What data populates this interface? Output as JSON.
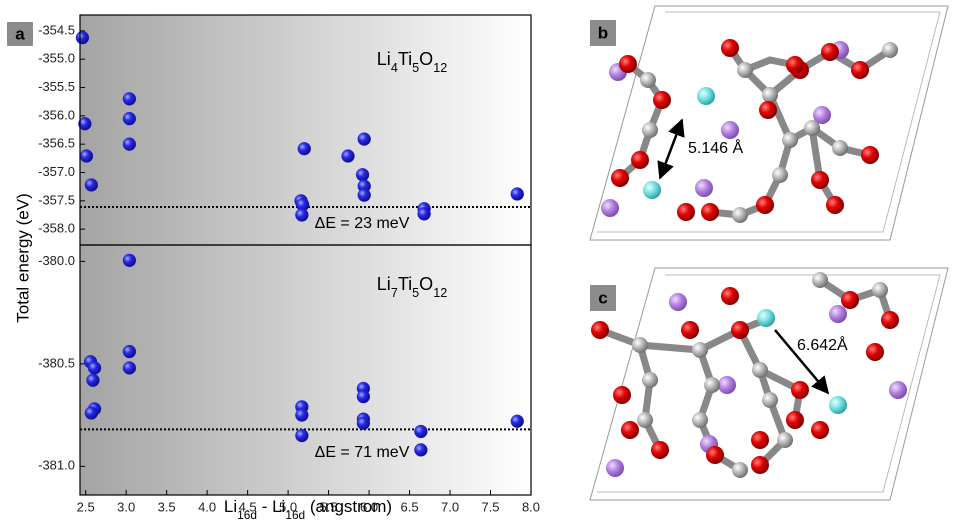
{
  "chart_data": [
    {
      "type": "scatter",
      "color": "#1a1adf",
      "formula": [
        "Li",
        "4",
        "Ti",
        "5",
        "O",
        "12"
      ],
      "delta_label": "ΔE = 23 meV",
      "reference_line": -357.61,
      "x": [
        2.46,
        2.49,
        3.04,
        3.04,
        3.04,
        2.51,
        2.57,
        5.2,
        5.16,
        5.18,
        5.17,
        5.74,
        5.94,
        5.92,
        5.94,
        5.94,
        6.68,
        6.68,
        7.83
      ],
      "values": [
        -354.62,
        -356.14,
        -355.7,
        -356.05,
        -356.5,
        -356.71,
        -357.22,
        -356.58,
        -357.5,
        -357.57,
        -357.75,
        -356.71,
        -356.41,
        -357.04,
        -357.24,
        -357.4,
        -357.64,
        -357.73,
        -357.38
      ],
      "xlim": [
        2.43,
        8.0
      ],
      "ylim": [
        -358.28,
        -354.22
      ],
      "yticks": [
        -354.5,
        {
          "value": -355,
          "label": "-355.0"
        },
        -355.5,
        {
          "value": -356,
          "label": "-356.0"
        },
        -356.5,
        {
          "value": -357,
          "label": "-357.0"
        },
        -357.5,
        {
          "value": -358,
          "label": "-358.0"
        }
      ]
    },
    {
      "type": "scatter",
      "color": "#1a1adf",
      "formula": [
        "Li",
        "7",
        "Ti",
        "5",
        "O",
        "12"
      ],
      "delta_label": "ΔE = 71 meV",
      "reference_line": -380.82,
      "x": [
        3.04,
        3.04,
        2.56,
        2.61,
        3.04,
        2.59,
        2.61,
        2.57,
        5.17,
        5.17,
        5.17,
        5.93,
        5.93,
        5.93,
        5.93,
        6.64,
        6.64,
        7.83
      ],
      "values": [
        -379.995,
        -380.44,
        -380.49,
        -380.52,
        -380.52,
        -380.58,
        -380.72,
        -380.74,
        -380.71,
        -380.75,
        -380.85,
        -380.62,
        -380.66,
        -380.77,
        -380.79,
        -380.83,
        -380.92,
        -380.78
      ],
      "xlim": [
        2.43,
        8.0
      ],
      "ylim": [
        -381.14,
        -379.92
      ],
      "yticks": [
        {
          "value": -380,
          "label": "-380.0"
        },
        -380.5,
        {
          "value": -381,
          "label": "-381.0"
        }
      ],
      "xticks": [
        2.5,
        {
          "value": 3,
          "label": "3.0"
        },
        3.5,
        {
          "value": 4,
          "label": "4.0"
        },
        4.5,
        {
          "value": 5,
          "label": "5.0"
        },
        5.5,
        {
          "value": 6,
          "label": "6.0"
        },
        6.5,
        {
          "value": 7,
          "label": "7.0"
        },
        7.5,
        {
          "value": 8,
          "label": "8.0"
        }
      ]
    }
  ],
  "y_label": "Total energy (eV)",
  "x_label": [
    "Li",
    "16d",
    " - Li",
    "16d",
    " (angstrom)"
  ],
  "panel_labels": [
    "a",
    "b",
    "c"
  ],
  "distances": [
    "5.146 Å",
    "6.642Å"
  ]
}
